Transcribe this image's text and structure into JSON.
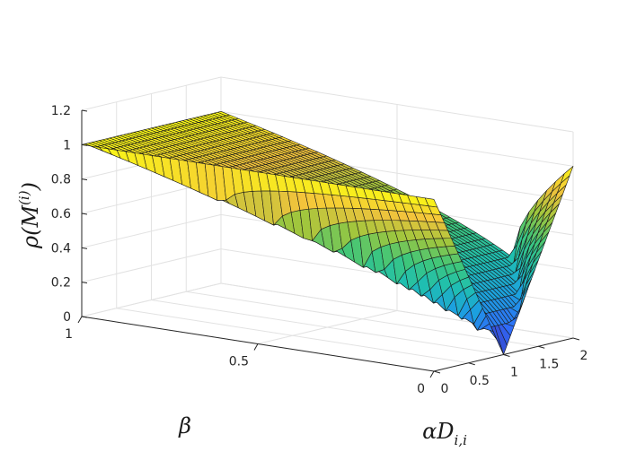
{
  "chart_data": {
    "type": "surface",
    "title": "",
    "xlabel": "αD_{i,i}",
    "ylabel": "β",
    "zlabel": "ρ(M^{(i)})",
    "xlim": [
      0,
      2
    ],
    "ylim": [
      0,
      1
    ],
    "zlim": [
      0,
      1.2
    ],
    "xticks": [
      "0",
      "0.5",
      "1",
      "1.5",
      "2"
    ],
    "yticks": [
      "0",
      "0.5",
      "1"
    ],
    "zticks": [
      "0",
      "0.2",
      "0.4",
      "0.6",
      "0.8",
      "1",
      "1.2"
    ],
    "grid": true,
    "colormap": [
      "#3e26a8",
      "#2f6cf9",
      "#1ca0df",
      "#1fbfb0",
      "#3ec67a",
      "#9fc63d",
      "#f3c33c",
      "#fafa14"
    ],
    "function": "rho = max over 2x2 iteration eigenvalues |lambda|, with lambda^2 - (1 + beta - x) lambda + beta = 0, x = alpha*D_ii",
    "samples": [
      {
        "x": 0,
        "y": 0,
        "z": 1
      },
      {
        "x": 0,
        "y": 1,
        "z": 1
      },
      {
        "x": 1,
        "y": 0,
        "z": 0
      },
      {
        "x": 1,
        "y": 1,
        "z": 1
      },
      {
        "x": 2,
        "y": 0,
        "z": 1
      },
      {
        "x": 0.5,
        "y": 0.5,
        "z": 0.707
      },
      {
        "x": 1.5,
        "y": 0.5,
        "z": 0.707
      }
    ]
  }
}
